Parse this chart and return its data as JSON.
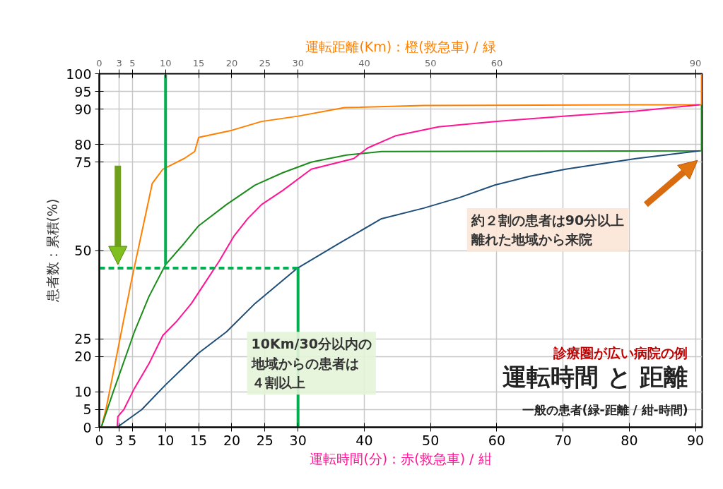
{
  "chart_data": {
    "type": "line",
    "xlabel": "運転時間(分)：赤(救急車) / 紺",
    "x2label": "運転距離(Km)：橙(救急車) / 緑",
    "ylabel": "患者数：累積(%)",
    "xlim": [
      0,
      91
    ],
    "xticks": [
      0,
      3,
      5,
      10,
      15,
      20,
      25,
      30,
      40,
      50,
      60,
      70,
      80,
      90
    ],
    "x2lim": [
      0,
      91
    ],
    "x2ticks": [
      0,
      3,
      5,
      10,
      15,
      20,
      25,
      30,
      40,
      50,
      60,
      90
    ],
    "ylim": [
      0,
      100
    ],
    "yticks": [
      0,
      5,
      10,
      20,
      25,
      50,
      75,
      80,
      90,
      95,
      100
    ],
    "grid": true,
    "series": [
      {
        "color": "#ff8000",
        "x": [
          0.3,
          1,
          2.7,
          4.8,
          6.4,
          8,
          9.6,
          12.8,
          14.4,
          15,
          20,
          24.5,
          30,
          37,
          49,
          81,
          90.9,
          90.9
        ],
        "values": [
          0,
          5,
          21,
          41,
          55,
          69,
          73,
          76,
          78,
          82,
          84,
          86.5,
          88,
          90.4,
          91,
          91.2,
          91.2,
          100
        ]
      },
      {
        "color": "#1a8c1a",
        "x": [
          0.3,
          2.1,
          5.3,
          7.5,
          10,
          12.8,
          15,
          19.2,
          23.5,
          27.7,
          32,
          37.3,
          42.6,
          90.9,
          90.9
        ],
        "values": [
          0,
          10,
          27,
          37,
          46,
          52,
          57,
          63,
          68.5,
          72,
          75,
          77,
          78,
          78.2,
          91.2
        ]
      },
      {
        "color": "#ff1493",
        "x": [
          2.7,
          2.8,
          3.7,
          5.3,
          7.5,
          9.6,
          11.7,
          13.9,
          16,
          18.1,
          20.3,
          22.4,
          24.5,
          27.7,
          32,
          38.4,
          40.5,
          44.8,
          51.2,
          59.7,
          70.4,
          81,
          90.6
        ],
        "values": [
          0,
          3,
          5,
          11,
          18,
          26,
          30,
          35,
          41,
          47,
          54,
          59,
          63,
          67,
          73,
          76,
          79,
          82.5,
          85,
          86.5,
          88,
          89.4,
          91.2
        ]
      },
      {
        "color": "#1f4e79",
        "x": [
          2.7,
          6.4,
          10,
          15,
          19.2,
          23.5,
          29.9,
          36.2,
          42.6,
          49,
          54.4,
          59.7,
          65,
          70.4,
          81,
          90.6
        ],
        "values": [
          0,
          5,
          12,
          21,
          27,
          35,
          45,
          52,
          59,
          62,
          65,
          68.5,
          71,
          73,
          76,
          78.2
        ]
      },
      {
        "color": "#00b050",
        "x": [
          10,
          10
        ],
        "values": [
          100,
          46
        ]
      },
      {
        "color": "#00b050",
        "x": [
          0,
          30
        ],
        "values": [
          45,
          45
        ],
        "line_style": "dashed"
      },
      {
        "color": "#00b050",
        "x": [
          30,
          30
        ],
        "values": [
          45,
          0
        ]
      }
    ],
    "annotations": [
      "約２割の患者は90分以上離れた地域から来院",
      "10Km/30分以内の地域からの患者は４割以上",
      "診療圏が広い病院の例",
      "運転時間 と 距離",
      "一般の患者(緑-距離 / 紺-時間)"
    ]
  }
}
